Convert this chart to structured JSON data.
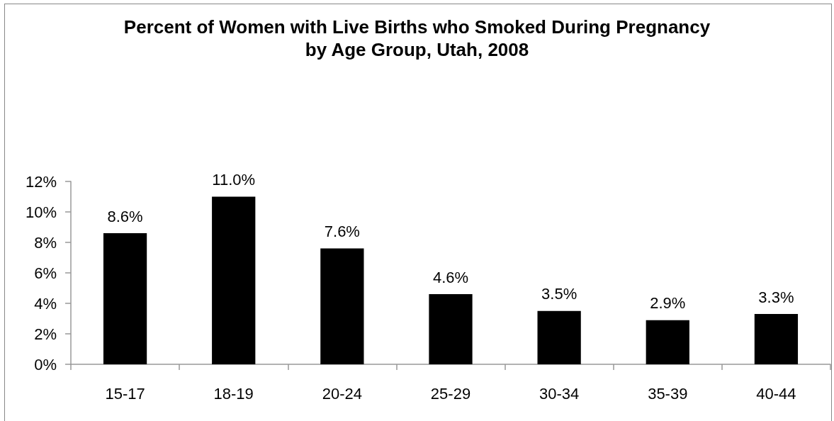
{
  "chart_data": {
    "type": "bar",
    "title": "Percent of Women with Live Births who Smoked During Pregnancy",
    "subtitle": "by Age Group, Utah, 2008",
    "categories": [
      "15-17",
      "18-19",
      "20-24",
      "25-29",
      "30-34",
      "35-39",
      "40-44"
    ],
    "values": [
      8.6,
      11.0,
      7.6,
      4.6,
      3.5,
      2.9,
      3.3
    ],
    "color": "#000000",
    "value_labels": [
      "8.6%",
      "11.0%",
      "7.6%",
      "4.6%",
      "3.5%",
      "2.9%",
      "3.3%"
    ],
    "ylim": [
      0,
      12
    ],
    "yticks": [
      {
        "value": 0,
        "label": "0%"
      },
      {
        "value": 2,
        "label": "2%"
      },
      {
        "value": 4,
        "label": "4%"
      },
      {
        "value": 6,
        "label": "6%"
      },
      {
        "value": 8,
        "label": "8%"
      },
      {
        "value": 10,
        "label": "10%"
      },
      {
        "value": 12,
        "label": "12%"
      }
    ],
    "grid": false
  }
}
